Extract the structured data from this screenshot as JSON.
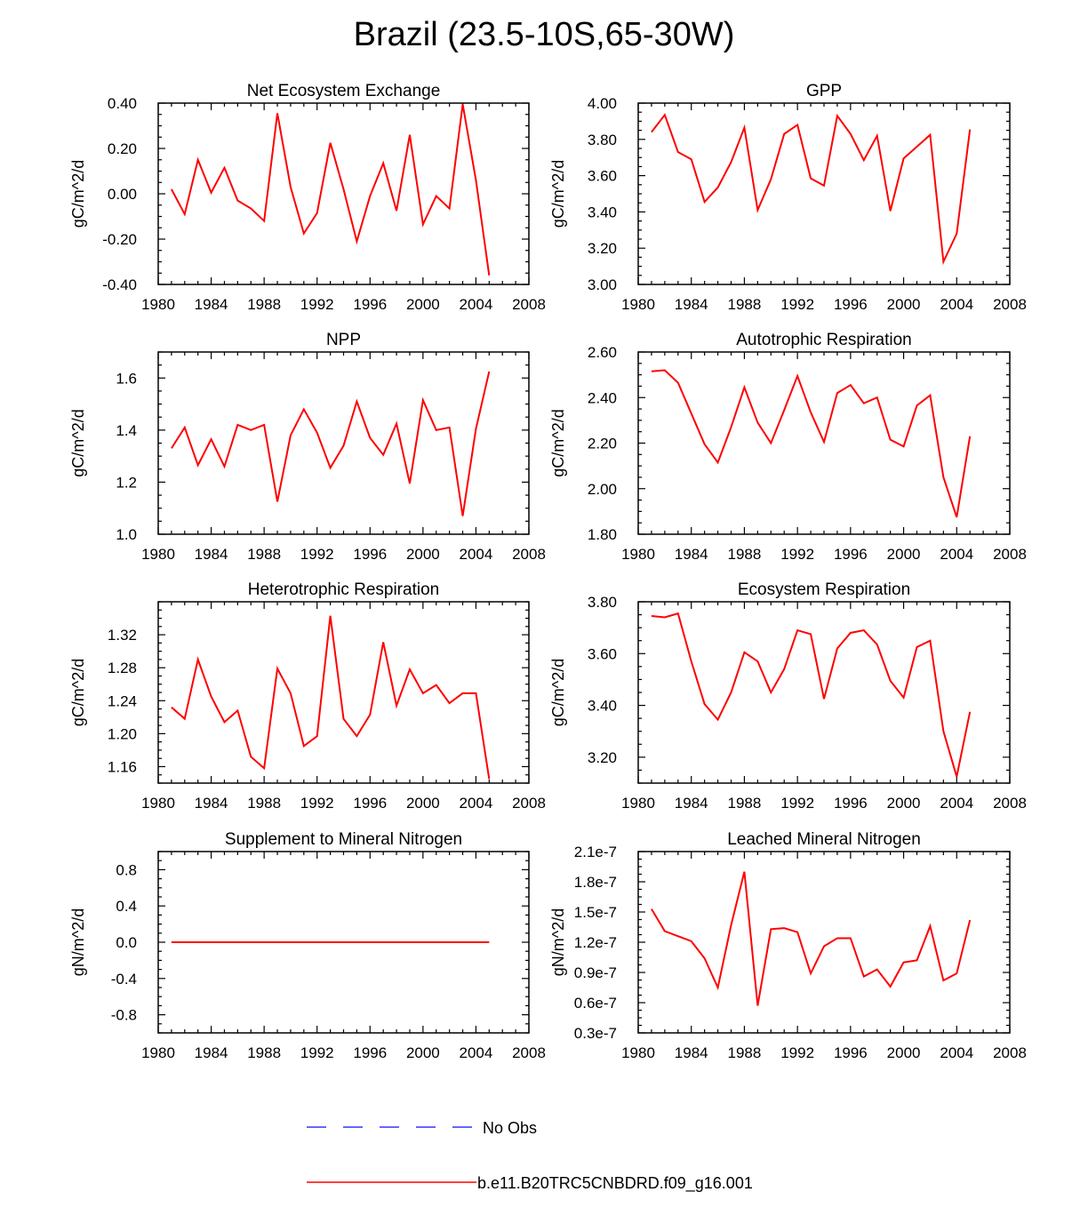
{
  "title": "Brazil (23.5-10S,65-30W)",
  "colors": {
    "model_line": "#ff0000",
    "obs_line": "#3333ff",
    "axis": "#000000"
  },
  "legend": [
    {
      "label": "No Obs",
      "style": "dashed",
      "color": "#3333ff"
    },
    {
      "label": "b.e11.B20TRC5CNBDRD.f09_g16.001",
      "style": "solid",
      "color": "#ff0000"
    }
  ],
  "chart_data": [
    {
      "type": "line",
      "title": "Net Ecosystem Exchange",
      "ylabel": "gC/m^2/d",
      "xlabel": "",
      "xlim": [
        1980,
        2008
      ],
      "ylim": [
        -0.4,
        0.4
      ],
      "xticks": [
        1980,
        1984,
        1988,
        1992,
        1996,
        2000,
        2004,
        2008
      ],
      "xticklabels": [
        "1980",
        "1984",
        "1988",
        "1992",
        "1996",
        "2000",
        "2004",
        "2008"
      ],
      "yticks": [
        -0.4,
        -0.2,
        0.0,
        0.2,
        0.4
      ],
      "yticklabels": [
        "-0.40",
        "-0.20",
        "0.00",
        "0.20",
        "0.40"
      ],
      "x": [
        1981,
        1982,
        1983,
        1984,
        1985,
        1986,
        1987,
        1988,
        1989,
        1990,
        1991,
        1992,
        1993,
        1994,
        1995,
        1996,
        1997,
        1998,
        1999,
        2000,
        2001,
        2002,
        2003,
        2004,
        2005
      ],
      "series": [
        {
          "values": [
            0.02,
            -0.09,
            0.15,
            0.005,
            0.115,
            -0.03,
            -0.065,
            -0.12,
            0.355,
            0.03,
            -0.175,
            -0.085,
            0.225,
            0.02,
            -0.21,
            -0.01,
            0.135,
            -0.075,
            0.26,
            -0.135,
            -0.01,
            -0.065,
            0.395,
            0.06,
            -0.36
          ]
        }
      ]
    },
    {
      "type": "line",
      "title": "GPP",
      "ylabel": "gC/m^2/d",
      "xlabel": "",
      "xlim": [
        1980,
        2008
      ],
      "ylim": [
        3.0,
        4.0
      ],
      "xticks": [
        1980,
        1984,
        1988,
        1992,
        1996,
        2000,
        2004,
        2008
      ],
      "xticklabels": [
        "1980",
        "1984",
        "1988",
        "1992",
        "1996",
        "2000",
        "2004",
        "2008"
      ],
      "yticks": [
        3.0,
        3.2,
        3.4,
        3.6,
        3.8,
        4.0
      ],
      "yticklabels": [
        "3.00",
        "3.20",
        "3.40",
        "3.60",
        "3.80",
        "4.00"
      ],
      "x": [
        1981,
        1982,
        1983,
        1984,
        1985,
        1986,
        1987,
        1988,
        1989,
        1990,
        1991,
        1992,
        1993,
        1994,
        1995,
        1996,
        1997,
        1998,
        1999,
        2000,
        2001,
        2002,
        2003,
        2004,
        2005
      ],
      "series": [
        {
          "values": [
            3.84,
            3.935,
            3.73,
            3.69,
            3.455,
            3.535,
            3.675,
            3.865,
            3.41,
            3.58,
            3.83,
            3.88,
            3.585,
            3.545,
            3.93,
            3.83,
            3.685,
            3.82,
            3.405,
            3.695,
            3.76,
            3.825,
            3.125,
            3.28,
            3.855
          ]
        }
      ]
    },
    {
      "type": "line",
      "title": "NPP",
      "ylabel": "gC/m^2/d",
      "xlabel": "",
      "xlim": [
        1980,
        2008
      ],
      "ylim": [
        1.0,
        1.7
      ],
      "xticks": [
        1980,
        1984,
        1988,
        1992,
        1996,
        2000,
        2004,
        2008
      ],
      "xticklabels": [
        "1980",
        "1984",
        "1988",
        "1992",
        "1996",
        "2000",
        "2004",
        "2008"
      ],
      "yticks": [
        1.0,
        1.2,
        1.4,
        1.6
      ],
      "yticklabels": [
        "1.0",
        "1.2",
        "1.4",
        "1.6"
      ],
      "x": [
        1981,
        1982,
        1983,
        1984,
        1985,
        1986,
        1987,
        1988,
        1989,
        1990,
        1991,
        1992,
        1993,
        1994,
        1995,
        1996,
        1997,
        1998,
        1999,
        2000,
        2001,
        2002,
        2003,
        2004,
        2005
      ],
      "series": [
        {
          "values": [
            1.33,
            1.41,
            1.265,
            1.365,
            1.26,
            1.42,
            1.4,
            1.42,
            1.125,
            1.38,
            1.48,
            1.39,
            1.255,
            1.34,
            1.51,
            1.37,
            1.305,
            1.425,
            1.195,
            1.515,
            1.4,
            1.41,
            1.07,
            1.405,
            1.625
          ]
        }
      ]
    },
    {
      "type": "line",
      "title": "Autotrophic Respiration",
      "ylabel": "gC/m^2/d",
      "xlabel": "",
      "xlim": [
        1980,
        2008
      ],
      "ylim": [
        1.8,
        2.6
      ],
      "xticks": [
        1980,
        1984,
        1988,
        1992,
        1996,
        2000,
        2004,
        2008
      ],
      "xticklabels": [
        "1980",
        "1984",
        "1988",
        "1992",
        "1996",
        "2000",
        "2004",
        "2008"
      ],
      "yticks": [
        1.8,
        2.0,
        2.2,
        2.4,
        2.6
      ],
      "yticklabels": [
        "1.80",
        "2.00",
        "2.20",
        "2.40",
        "2.60"
      ],
      "x": [
        1981,
        1982,
        1983,
        1984,
        1985,
        1986,
        1987,
        1988,
        1989,
        1990,
        1991,
        1992,
        1993,
        1994,
        1995,
        1996,
        1997,
        1998,
        1999,
        2000,
        2001,
        2002,
        2003,
        2004,
        2005
      ],
      "series": [
        {
          "values": [
            2.515,
            2.52,
            2.465,
            2.33,
            2.195,
            2.115,
            2.27,
            2.445,
            2.29,
            2.2,
            2.345,
            2.495,
            2.335,
            2.205,
            2.42,
            2.455,
            2.375,
            2.4,
            2.215,
            2.185,
            2.365,
            2.41,
            2.05,
            1.875,
            2.23
          ]
        }
      ]
    },
    {
      "type": "line",
      "title": "Heterotrophic Respiration",
      "ylabel": "gC/m^2/d",
      "xlabel": "",
      "xlim": [
        1980,
        2008
      ],
      "ylim": [
        1.14,
        1.36
      ],
      "xticks": [
        1980,
        1984,
        1988,
        1992,
        1996,
        2000,
        2004,
        2008
      ],
      "xticklabels": [
        "1980",
        "1984",
        "1988",
        "1992",
        "1996",
        "2000",
        "2004",
        "2008"
      ],
      "yticks": [
        1.16,
        1.2,
        1.24,
        1.28,
        1.32
      ],
      "yticklabels": [
        "1.16",
        "1.20",
        "1.24",
        "1.28",
        "1.32"
      ],
      "x": [
        1981,
        1982,
        1983,
        1984,
        1985,
        1986,
        1987,
        1988,
        1989,
        1990,
        1991,
        1992,
        1993,
        1994,
        1995,
        1996,
        1997,
        1998,
        1999,
        2000,
        2001,
        2002,
        2003,
        2004,
        2005
      ],
      "series": [
        {
          "values": [
            1.232,
            1.218,
            1.29,
            1.245,
            1.214,
            1.228,
            1.172,
            1.158,
            1.279,
            1.249,
            1.185,
            1.197,
            1.343,
            1.218,
            1.197,
            1.223,
            1.311,
            1.234,
            1.278,
            1.249,
            1.259,
            1.237,
            1.249,
            1.249,
            1.145
          ]
        }
      ]
    },
    {
      "type": "line",
      "title": "Ecosystem Respiration",
      "ylabel": "gC/m^2/d",
      "xlabel": "",
      "xlim": [
        1980,
        2008
      ],
      "ylim": [
        3.1,
        3.8
      ],
      "xticks": [
        1980,
        1984,
        1988,
        1992,
        1996,
        2000,
        2004,
        2008
      ],
      "xticklabels": [
        "1980",
        "1984",
        "1988",
        "1992",
        "1996",
        "2000",
        "2004",
        "2008"
      ],
      "yticks": [
        3.2,
        3.4,
        3.6,
        3.8
      ],
      "yticklabels": [
        "3.20",
        "3.40",
        "3.60",
        "3.80"
      ],
      "x": [
        1981,
        1982,
        1983,
        1984,
        1985,
        1986,
        1987,
        1988,
        1989,
        1990,
        1991,
        1992,
        1993,
        1994,
        1995,
        1996,
        1997,
        1998,
        1999,
        2000,
        2001,
        2002,
        2003,
        2004,
        2005
      ],
      "series": [
        {
          "values": [
            3.745,
            3.74,
            3.755,
            3.57,
            3.405,
            3.345,
            3.45,
            3.605,
            3.57,
            3.45,
            3.54,
            3.69,
            3.675,
            3.425,
            3.62,
            3.68,
            3.69,
            3.635,
            3.495,
            3.43,
            3.625,
            3.65,
            3.3,
            3.125,
            3.375
          ]
        }
      ]
    },
    {
      "type": "line",
      "title": "Supplement to Mineral Nitrogen",
      "ylabel": "gN/m^2/d",
      "xlabel": "",
      "xlim": [
        1980,
        2008
      ],
      "ylim": [
        -1.0,
        1.0
      ],
      "xticks": [
        1980,
        1984,
        1988,
        1992,
        1996,
        2000,
        2004,
        2008
      ],
      "xticklabels": [
        "1980",
        "1984",
        "1988",
        "1992",
        "1996",
        "2000",
        "2004",
        "2008"
      ],
      "yticks": [
        -0.8,
        -0.4,
        0.0,
        0.4,
        0.8
      ],
      "yticklabels": [
        "-0.8",
        "-0.4",
        "0.0",
        "0.4",
        "0.8"
      ],
      "x": [
        1981,
        1982,
        1983,
        1984,
        1985,
        1986,
        1987,
        1988,
        1989,
        1990,
        1991,
        1992,
        1993,
        1994,
        1995,
        1996,
        1997,
        1998,
        1999,
        2000,
        2001,
        2002,
        2003,
        2004,
        2005
      ],
      "series": [
        {
          "values": [
            0,
            0,
            0,
            0,
            0,
            0,
            0,
            0,
            0,
            0,
            0,
            0,
            0,
            0,
            0,
            0,
            0,
            0,
            0,
            0,
            0,
            0,
            0,
            0,
            0
          ]
        }
      ]
    },
    {
      "type": "line",
      "title": "Leached Mineral Nitrogen",
      "ylabel": "gN/m^2/d",
      "xlabel": "",
      "xlim": [
        1980,
        2008
      ],
      "ylim": [
        3e-08,
        2.1e-07
      ],
      "xticks": [
        1980,
        1984,
        1988,
        1992,
        1996,
        2000,
        2004,
        2008
      ],
      "xticklabels": [
        "1980",
        "1984",
        "1988",
        "1992",
        "1996",
        "2000",
        "2004",
        "2008"
      ],
      "yticks": [
        3e-08,
        6e-08,
        9e-08,
        1.2e-07,
        1.5e-07,
        1.8e-07,
        2.1e-07
      ],
      "yticklabels": [
        "0.3e-7",
        "0.6e-7",
        "0.9e-7",
        "1.2e-7",
        "1.5e-7",
        "1.8e-7",
        "2.1e-7"
      ],
      "x": [
        1981,
        1982,
        1983,
        1984,
        1985,
        1986,
        1987,
        1988,
        1989,
        1990,
        1991,
        1992,
        1993,
        1994,
        1995,
        1996,
        1997,
        1998,
        1999,
        2000,
        2001,
        2002,
        2003,
        2004,
        2005
      ],
      "series": [
        {
          "values": [
            1.53e-07,
            1.31e-07,
            1.26e-07,
            1.21e-07,
            1.04e-07,
            7.5e-08,
            1.37e-07,
            1.9e-07,
            5.7e-08,
            1.33e-07,
            1.34e-07,
            1.3e-07,
            8.9e-08,
            1.16e-07,
            1.24e-07,
            1.24e-07,
            8.6e-08,
            9.3e-08,
            7.6e-08,
            1e-07,
            1.02e-07,
            1.36e-07,
            8.2e-08,
            8.9e-08,
            1.42e-07
          ]
        }
      ]
    }
  ]
}
